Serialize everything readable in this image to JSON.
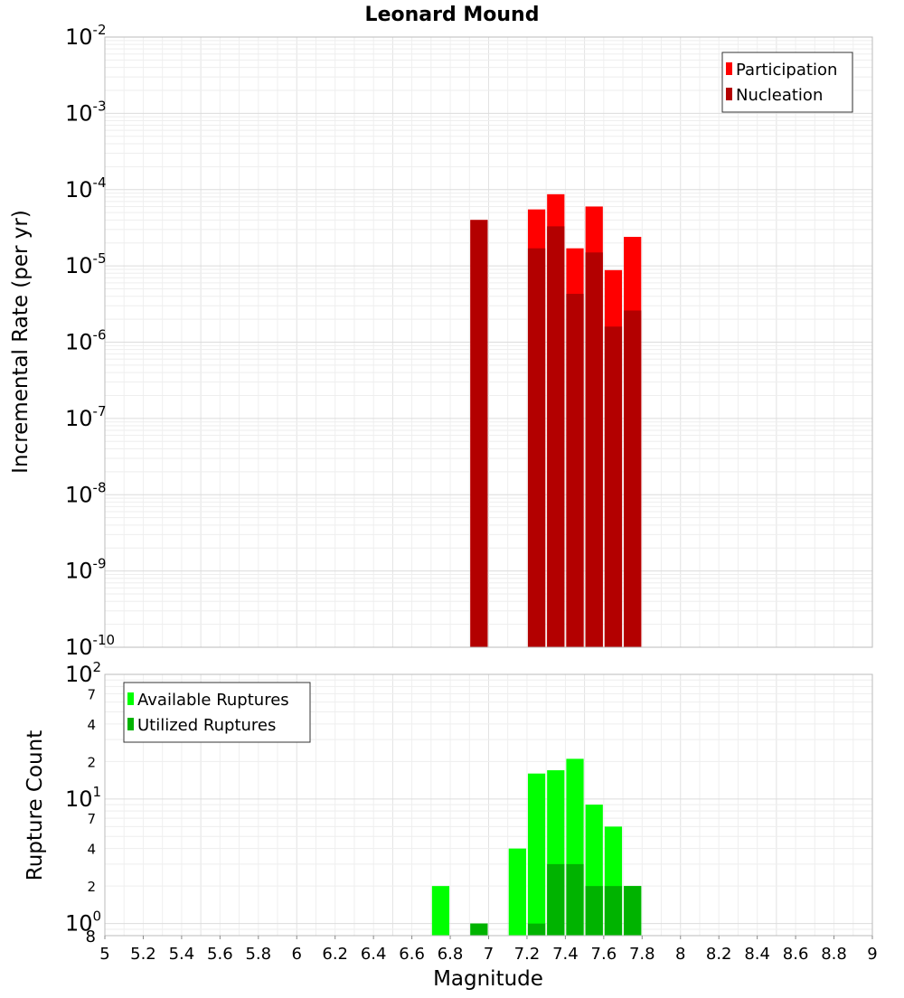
{
  "chart_data": [
    {
      "type": "bar",
      "title": "Leonard Mound",
      "xlabel": "",
      "ylabel": "Incremental Rate (per yr)",
      "xlim": [
        5,
        9
      ],
      "ylim": [
        1e-10,
        0.01
      ],
      "yscale": "log",
      "grid": true,
      "legend_position": "top-right",
      "bin_width": 0.1,
      "y_tick_labels": [
        {
          "base": "10",
          "exp": "-2"
        },
        {
          "base": "10",
          "exp": "-3"
        },
        {
          "base": "10",
          "exp": "-4"
        },
        {
          "base": "10",
          "exp": "-5"
        },
        {
          "base": "10",
          "exp": "-6"
        },
        {
          "base": "10",
          "exp": "-7"
        },
        {
          "base": "10",
          "exp": "-8"
        },
        {
          "base": "10",
          "exp": "-9"
        },
        {
          "base": "10",
          "exp": "-10"
        }
      ],
      "series": [
        {
          "name": "Participation",
          "color": "#ff0000",
          "x": [
            6.95,
            7.25,
            7.35,
            7.45,
            7.55,
            7.65,
            7.75
          ],
          "values": [
            4e-05,
            5.5e-05,
            8.7e-05,
            1.7e-05,
            6e-05,
            8.8e-06,
            2.4e-05
          ]
        },
        {
          "name": "Nucleation",
          "color": "#b30000",
          "x": [
            6.95,
            7.25,
            7.35,
            7.45,
            7.55,
            7.65,
            7.75
          ],
          "values": [
            4e-05,
            1.7e-05,
            3.3e-05,
            4.3e-06,
            1.5e-05,
            1.6e-06,
            2.6e-06
          ]
        }
      ]
    },
    {
      "type": "bar",
      "title": "",
      "xlabel": "Magnitude",
      "ylabel": "Rupture Count",
      "xlim": [
        5,
        9
      ],
      "ylim": [
        0.8,
        100
      ],
      "yscale": "log",
      "grid": true,
      "legend_position": "top-left",
      "bin_width": 0.1,
      "x_tick_labels": [
        "5",
        "5.2",
        "5.4",
        "5.6",
        "5.8",
        "6",
        "6.2",
        "6.4",
        "6.6",
        "6.8",
        "7",
        "7.2",
        "7.4",
        "7.6",
        "7.8",
        "8",
        "8.2",
        "8.4",
        "8.6",
        "8.8",
        "9"
      ],
      "y_major_ticks": [
        {
          "value": 100,
          "base": "10",
          "exp": "2"
        },
        {
          "value": 10,
          "base": "10",
          "exp": "1"
        },
        {
          "value": 1,
          "base": "10",
          "exp": "0"
        }
      ],
      "y_minor_ticks": [
        {
          "value": 70,
          "label": "7"
        },
        {
          "value": 40,
          "label": "4"
        },
        {
          "value": 20,
          "label": "2"
        },
        {
          "value": 7,
          "label": "7"
        },
        {
          "value": 4,
          "label": "4"
        },
        {
          "value": 2,
          "label": "2"
        },
        {
          "value": 0.8,
          "label": "8"
        }
      ],
      "series": [
        {
          "name": "Available Ruptures",
          "color": "#00ff00",
          "x": [
            6.75,
            6.95,
            7.15,
            7.25,
            7.35,
            7.45,
            7.55,
            7.65,
            7.75
          ],
          "values": [
            2,
            1,
            4,
            16,
            17,
            21,
            9,
            6,
            2
          ]
        },
        {
          "name": "Utilized Ruptures",
          "color": "#00b300",
          "x": [
            6.95,
            7.25,
            7.35,
            7.45,
            7.55,
            7.65,
            7.75
          ],
          "values": [
            1,
            1,
            3,
            3,
            2,
            2,
            2
          ]
        }
      ]
    }
  ]
}
